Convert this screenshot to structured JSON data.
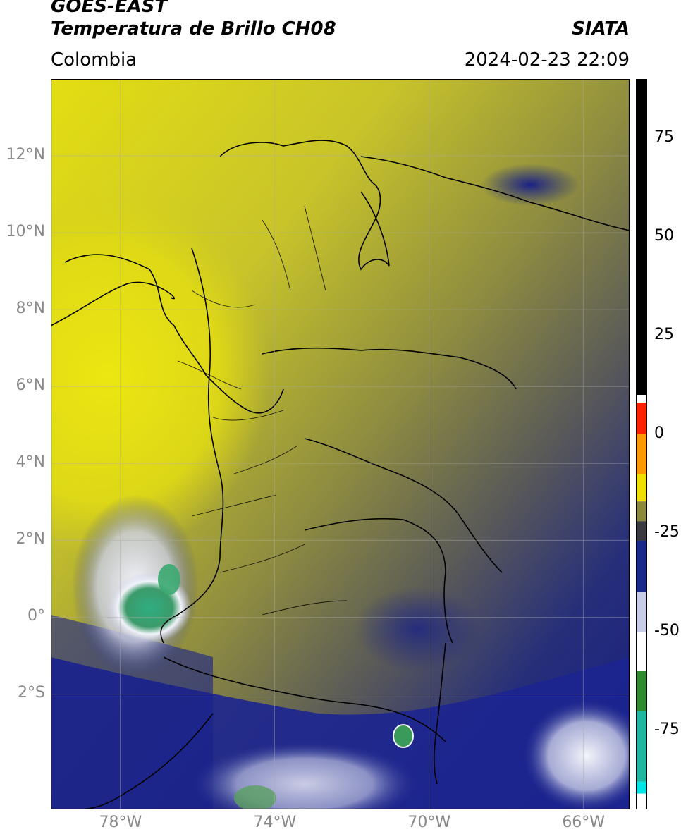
{
  "header": {
    "satellite": "GOES-EAST",
    "product": "Temperatura de Brillo CH08",
    "organization": "SIATA",
    "region": "Colombia",
    "timestamp": "2024-02-23 22:09"
  },
  "map": {
    "lon_range": [
      -79.8,
      -64.8
    ],
    "lat_range": [
      -5.0,
      14.0
    ],
    "lat_ticks": [
      {
        "value": 12,
        "label": "12°N"
      },
      {
        "value": 10,
        "label": "10°N"
      },
      {
        "value": 8,
        "label": "8°N"
      },
      {
        "value": 6,
        "label": "6°N"
      },
      {
        "value": 4,
        "label": "4°N"
      },
      {
        "value": 2,
        "label": "2°N"
      },
      {
        "value": 0,
        "label": "0°"
      },
      {
        "value": -2,
        "label": "2°S"
      }
    ],
    "lon_ticks": [
      {
        "value": -78,
        "label": "78°W"
      },
      {
        "value": -74,
        "label": "74°W"
      },
      {
        "value": -70,
        "label": "70°W"
      },
      {
        "value": -66,
        "label": "66°W"
      }
    ],
    "grid": true
  },
  "colorbar": {
    "range": [
      -95,
      90
    ],
    "ticks": [
      {
        "value": 75,
        "label": "75"
      },
      {
        "value": 50,
        "label": "50"
      },
      {
        "value": 25,
        "label": "25"
      },
      {
        "value": 0,
        "label": "0"
      },
      {
        "value": -25,
        "label": "-25"
      },
      {
        "value": -50,
        "label": "-50"
      },
      {
        "value": -75,
        "label": "-75"
      }
    ],
    "segments": [
      {
        "from": 10,
        "to": 90,
        "color": "#000000"
      },
      {
        "from": 8,
        "to": 10,
        "color": "#ffffff"
      },
      {
        "from": 0,
        "to": 8,
        "color": "#ff2200"
      },
      {
        "from": -10,
        "to": 0,
        "color": "#ff9900"
      },
      {
        "from": -17,
        "to": -10,
        "color": "#f0e000"
      },
      {
        "from": -22,
        "to": -17,
        "color": "#8a8a3a"
      },
      {
        "from": -27,
        "to": -22,
        "color": "#3a3a40"
      },
      {
        "from": -40,
        "to": -27,
        "color": "#1a2a8a"
      },
      {
        "from": -50,
        "to": -40,
        "color": "#c8cce6"
      },
      {
        "from": -60,
        "to": -50,
        "color": "#ffffff"
      },
      {
        "from": -70,
        "to": -60,
        "color": "#2e8b2e"
      },
      {
        "from": -88,
        "to": -70,
        "color": "#20b7a0"
      },
      {
        "from": -91,
        "to": -88,
        "color": "#00e5e5"
      },
      {
        "from": -95,
        "to": -91,
        "color": "#ffffff"
      }
    ]
  },
  "colors": {
    "warm_yellow": "#e6e010",
    "olive": "#9a9a3a",
    "dark_gray": "#55555a",
    "deep_blue": "#18207a",
    "cold_white": "#e8eaf5",
    "very_cold_green": "#3aa870"
  }
}
